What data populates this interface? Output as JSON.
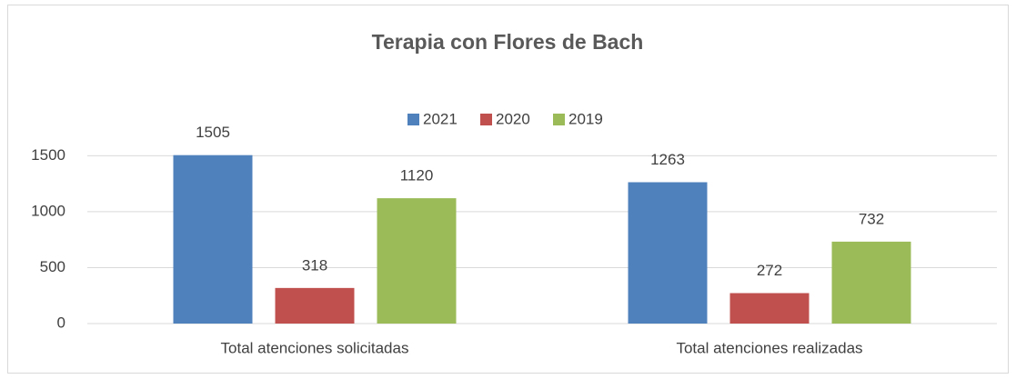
{
  "chart_data": {
    "type": "bar",
    "title": "Terapia con Flores de Bach",
    "categories": [
      "Total atenciones solicitadas",
      "Total atenciones realizadas"
    ],
    "series": [
      {
        "name": "2021",
        "color": "#4f81bd",
        "values": [
          1505,
          1263
        ]
      },
      {
        "name": "2020",
        "color": "#c0504d",
        "values": [
          318,
          272
        ]
      },
      {
        "name": "2019",
        "color": "#9bbb59",
        "values": [
          1120,
          732
        ]
      }
    ],
    "ylim": [
      0,
      1600
    ],
    "yticks": [
      0,
      500,
      1000,
      1500
    ],
    "grid": true,
    "legend": "top"
  }
}
